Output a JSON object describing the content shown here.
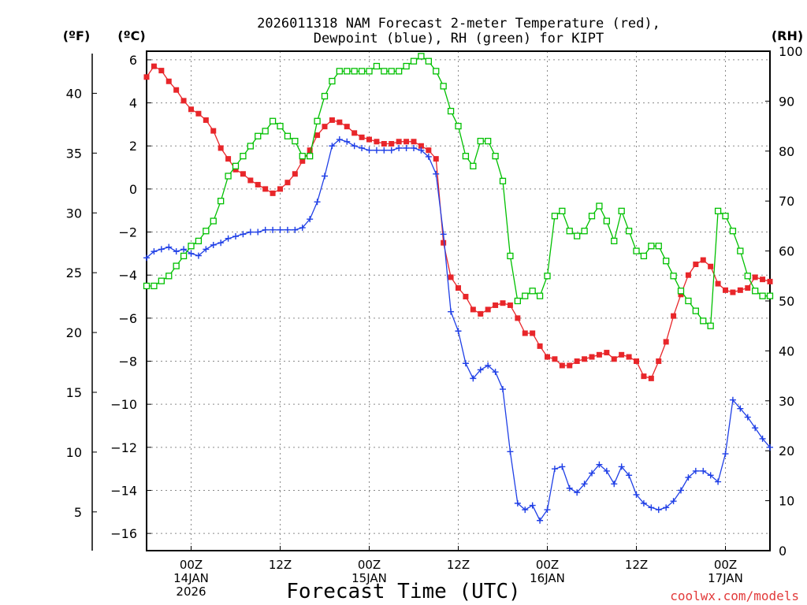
{
  "colors": {
    "temp": "#e8262a",
    "dewpoint": "#1f3fe6",
    "rh": "#00c000",
    "grid": "#8a8a8a",
    "credit": "#e23a3a"
  },
  "chart_data": {
    "type": "line",
    "title_line1": "2026011318 NAM Forecast 2-meter Temperature (red),",
    "title_line2": "Dewpoint (blue), RH (green) for KIPT",
    "xlabel": "Forecast Time (UTC)",
    "credit": "coolwx.com/models",
    "units": {
      "fahrenheit": "(ºF)",
      "celsius": "(ºC)",
      "rh": "(RH)"
    },
    "x_unit": "hours since 2026-01-13 18Z",
    "xlim": [
      0,
      84
    ],
    "ylim_celsius": [
      -16.8,
      6.4
    ],
    "ylim_rh": [
      0,
      100
    ],
    "x_ticks": [
      {
        "x": 6,
        "l1": "00Z",
        "l2": "14JAN",
        "l3": "2026"
      },
      {
        "x": 18,
        "l1": "12Z",
        "l2": "",
        "l3": ""
      },
      {
        "x": 30,
        "l1": "00Z",
        "l2": "15JAN",
        "l3": ""
      },
      {
        "x": 42,
        "l1": "12Z",
        "l2": "",
        "l3": ""
      },
      {
        "x": 54,
        "l1": "00Z",
        "l2": "16JAN",
        "l3": ""
      },
      {
        "x": 66,
        "l1": "12Z",
        "l2": "",
        "l3": ""
      },
      {
        "x": 78,
        "l1": "00Z",
        "l2": "17JAN",
        "l3": ""
      }
    ],
    "celsius_ticks": [
      "6",
      "4",
      "2",
      "0",
      "−2",
      "−4",
      "−6",
      "−8",
      "−10",
      "−12",
      "−14",
      "−16"
    ],
    "celsius_tick_values": [
      6,
      4,
      2,
      0,
      -2,
      -4,
      -6,
      -8,
      -10,
      -12,
      -14,
      -16
    ],
    "fahrenheit_ticks": [
      "40",
      "35",
      "30",
      "25",
      "20",
      "15",
      "10",
      "5"
    ],
    "fahrenheit_tick_values": [
      40,
      35,
      30,
      25,
      20,
      15,
      10,
      5
    ],
    "rh_ticks": [
      "100",
      "90",
      "80",
      "70",
      "60",
      "50",
      "40",
      "30",
      "20",
      "10",
      "0"
    ],
    "rh_tick_values": [
      100,
      90,
      80,
      70,
      60,
      50,
      40,
      30,
      20,
      10,
      0
    ],
    "series": [
      {
        "name": "2-meter Temperature",
        "color": "red",
        "unit": "C",
        "x": [
          0,
          1,
          2,
          3,
          4,
          5,
          6,
          7,
          8,
          9,
          10,
          11,
          12,
          13,
          14,
          15,
          16,
          17,
          18,
          19,
          20,
          21,
          22,
          23,
          24,
          25,
          26,
          27,
          28,
          29,
          30,
          31,
          32,
          33,
          34,
          35,
          36,
          37,
          38,
          39,
          40,
          41,
          42,
          43,
          44,
          45,
          46,
          47,
          48,
          49,
          50,
          51,
          52,
          53,
          54,
          55,
          56,
          57,
          58,
          59,
          60,
          61,
          62,
          63,
          64,
          65,
          66,
          67,
          68,
          69,
          70,
          71,
          72,
          73,
          74,
          75,
          76,
          77,
          78,
          79,
          80,
          81,
          82,
          83,
          84
        ],
        "values": [
          5.2,
          5.7,
          5.5,
          5.0,
          4.6,
          4.1,
          3.7,
          3.5,
          3.2,
          2.7,
          1.9,
          1.4,
          0.9,
          0.7,
          0.4,
          0.2,
          0.0,
          -0.2,
          0.0,
          0.3,
          0.7,
          1.3,
          1.8,
          2.5,
          2.9,
          3.2,
          3.1,
          2.9,
          2.6,
          2.4,
          2.3,
          2.2,
          2.1,
          2.1,
          2.2,
          2.2,
          2.2,
          2.0,
          1.8,
          1.4,
          -2.5,
          -4.1,
          -4.6,
          -5.0,
          -5.6,
          -5.8,
          -5.6,
          -5.4,
          -5.3,
          -5.4,
          -6.0,
          -6.7,
          -6.7,
          -7.3,
          -7.8,
          -7.9,
          -8.2,
          -8.2,
          -8.0,
          -7.9,
          -7.8,
          -7.7,
          -7.6,
          -7.9,
          -7.7,
          -7.8,
          -8.0,
          -8.7,
          -8.8,
          -8.0,
          -7.1,
          -5.9,
          -4.9,
          -4.0,
          -3.5,
          -3.3,
          -3.6,
          -4.4,
          -4.7,
          -4.8,
          -4.7,
          -4.6,
          -4.1,
          -4.2,
          -4.3
        ]
      },
      {
        "name": "Dewpoint",
        "color": "blue",
        "unit": "C",
        "x": [
          0,
          1,
          2,
          3,
          4,
          5,
          6,
          7,
          8,
          9,
          10,
          11,
          12,
          13,
          14,
          15,
          16,
          17,
          18,
          19,
          20,
          21,
          22,
          23,
          24,
          25,
          26,
          27,
          28,
          29,
          30,
          31,
          32,
          33,
          34,
          35,
          36,
          37,
          38,
          39,
          40,
          41,
          42,
          43,
          44,
          45,
          46,
          47,
          48,
          49,
          50,
          51,
          52,
          53,
          54,
          55,
          56,
          57,
          58,
          59,
          60,
          61,
          62,
          63,
          64,
          65,
          66,
          67,
          68,
          69,
          70,
          71,
          72,
          73,
          74,
          75,
          76,
          77,
          78,
          79,
          80,
          81,
          82,
          83,
          84
        ],
        "values": [
          -3.2,
          -2.9,
          -2.8,
          -2.7,
          -2.9,
          -2.8,
          -3.0,
          -3.1,
          -2.8,
          -2.6,
          -2.5,
          -2.3,
          -2.2,
          -2.1,
          -2.0,
          -2.0,
          -1.9,
          -1.9,
          -1.9,
          -1.9,
          -1.9,
          -1.8,
          -1.4,
          -0.6,
          0.6,
          2.0,
          2.3,
          2.2,
          2.0,
          1.9,
          1.8,
          1.8,
          1.8,
          1.8,
          1.9,
          1.9,
          1.9,
          1.8,
          1.5,
          0.7,
          -2.1,
          -5.7,
          -6.6,
          -8.1,
          -8.8,
          -8.4,
          -8.2,
          -8.5,
          -9.3,
          -12.2,
          -14.6,
          -14.9,
          -14.7,
          -15.4,
          -14.9,
          -13.0,
          -12.9,
          -13.9,
          -14.1,
          -13.7,
          -13.2,
          -12.8,
          -13.1,
          -13.7,
          -12.9,
          -13.3,
          -14.2,
          -14.6,
          -14.8,
          -14.9,
          -14.8,
          -14.5,
          -14.0,
          -13.4,
          -13.1,
          -13.1,
          -13.3,
          -13.6,
          -12.3,
          -9.8,
          -10.2,
          -10.6,
          -11.1,
          -11.6,
          -12.0
        ]
      },
      {
        "name": "RH",
        "color": "green",
        "unit": "%",
        "x": [
          0,
          1,
          2,
          3,
          4,
          5,
          6,
          7,
          8,
          9,
          10,
          11,
          12,
          13,
          14,
          15,
          16,
          17,
          18,
          19,
          20,
          21,
          22,
          23,
          24,
          25,
          26,
          27,
          28,
          29,
          30,
          31,
          32,
          33,
          34,
          35,
          36,
          37,
          38,
          39,
          40,
          41,
          42,
          43,
          44,
          45,
          46,
          47,
          48,
          49,
          50,
          51,
          52,
          53,
          54,
          55,
          56,
          57,
          58,
          59,
          60,
          61,
          62,
          63,
          64,
          65,
          66,
          67,
          68,
          69,
          70,
          71,
          72,
          73,
          74,
          75,
          76,
          77,
          78,
          79,
          80,
          81,
          82,
          83,
          84
        ],
        "values": [
          53,
          53,
          54,
          55,
          57,
          59,
          61,
          62,
          64,
          66,
          70,
          75,
          77,
          79,
          81,
          83,
          84,
          86,
          85,
          83,
          82,
          79,
          79,
          86,
          91,
          94,
          96,
          96,
          96,
          96,
          96,
          97,
          96,
          96,
          96,
          97,
          98,
          99,
          98,
          96,
          93,
          88,
          85,
          79,
          77,
          82,
          82,
          79,
          74,
          59,
          50,
          51,
          52,
          51,
          55,
          67,
          68,
          64,
          63,
          64,
          67,
          69,
          66,
          62,
          68,
          64,
          60,
          59,
          61,
          61,
          58,
          55,
          52,
          50,
          48,
          46,
          45,
          68,
          67,
          64,
          60,
          55,
          52,
          51,
          51
        ]
      }
    ]
  }
}
